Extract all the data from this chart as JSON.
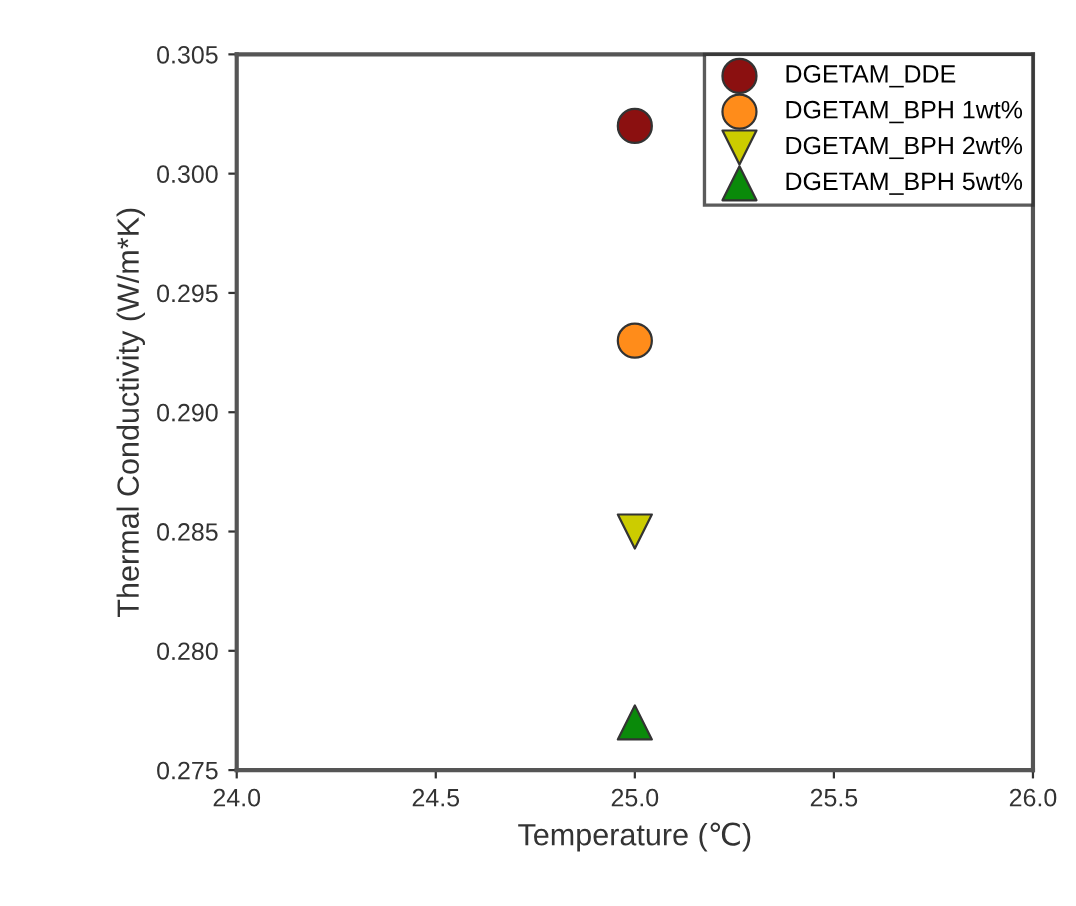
{
  "chart_data": {
    "type": "scatter",
    "xlabel": "Temperature (℃)",
    "ylabel": "Thermal Conductivity (W/m*K)",
    "xlim": [
      24.0,
      26.0
    ],
    "xticks": [
      {
        "value": 24,
        "label": "24.0"
      },
      {
        "value": 24.5,
        "label": "24.5"
      },
      {
        "value": 25,
        "label": "25.0"
      },
      {
        "value": 25.5,
        "label": "25.5"
      },
      {
        "value": 26,
        "label": "26.0"
      }
    ],
    "ylim": [
      0.275,
      0.305
    ],
    "yticks": [
      {
        "value": 0.275,
        "label": "0.275"
      },
      {
        "value": 0.28,
        "label": "0.280"
      },
      {
        "value": 0.285,
        "label": "0.285"
      },
      {
        "value": 0.29,
        "label": "0.290"
      },
      {
        "value": 0.295,
        "label": "0.295"
      },
      {
        "value": 0.3,
        "label": "0.300"
      },
      {
        "value": 0.305,
        "label": "0.305"
      }
    ],
    "grid": false,
    "legend": "top right",
    "x": [
      25
    ],
    "series": [
      {
        "name": "DGETAM_DDE",
        "color": "#8b1010",
        "marker": "circle",
        "values": [
          0.302
        ]
      },
      {
        "name": "DGETAM_BPH 1wt%",
        "color": "#ff8c1a",
        "marker": "circle",
        "values": [
          0.293
        ]
      },
      {
        "name": "DGETAM_BPH 2wt%",
        "color": "#cccc00",
        "marker": "triangle_down",
        "values": [
          0.285
        ]
      },
      {
        "name": "DGETAM_BPH 5wt%",
        "color": "#0a8a0a",
        "marker": "triangle",
        "values": [
          0.277
        ]
      }
    ]
  }
}
